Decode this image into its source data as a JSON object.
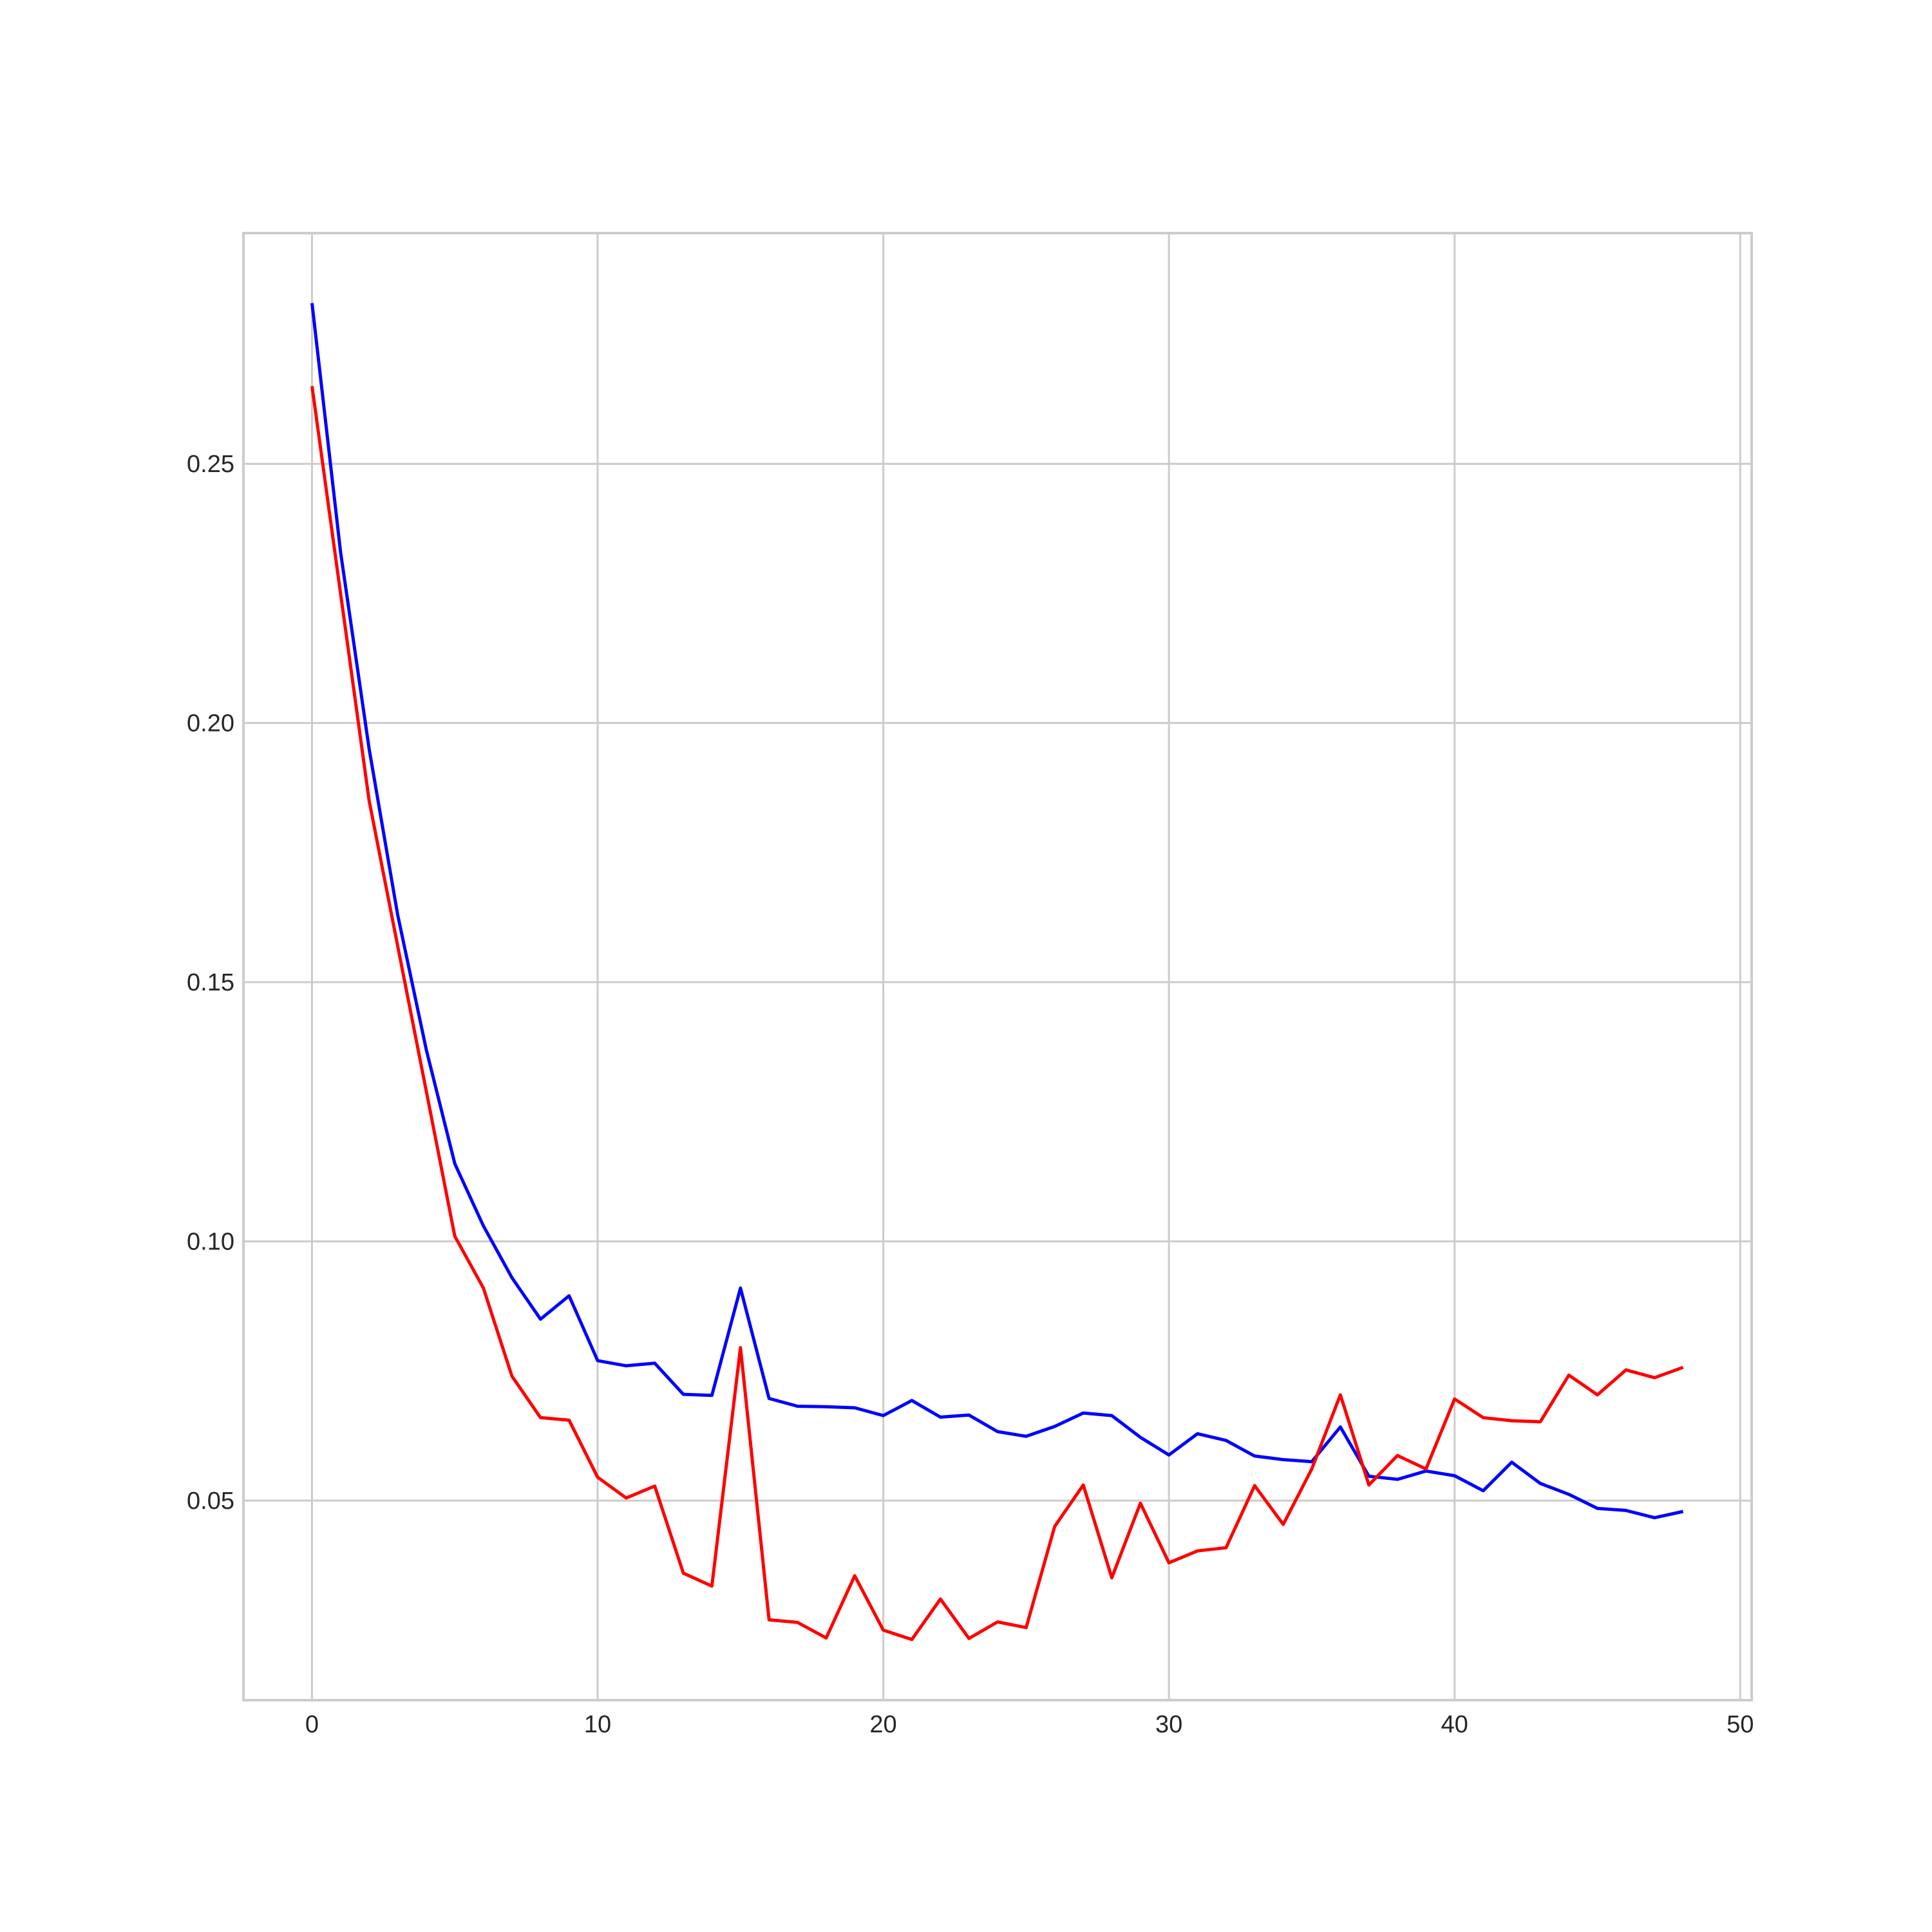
{
  "chart_data": {
    "type": "line",
    "title": "",
    "xlabel": "",
    "ylabel": "",
    "xlim": [
      -2.4,
      50.4
    ],
    "ylim": [
      0.0115,
      0.2945
    ],
    "xticks": [
      0,
      10,
      20,
      30,
      40,
      50
    ],
    "xtick_labels": [
      "0",
      "10",
      "20",
      "30",
      "40",
      "50"
    ],
    "yticks": [
      0.05,
      0.1,
      0.15,
      0.2,
      0.25
    ],
    "ytick_labels": [
      "0.05",
      "0.10",
      "0.15",
      "0.20",
      "0.25"
    ],
    "grid": true,
    "legend": "none",
    "x": [
      0,
      1,
      2,
      3,
      4,
      5,
      6,
      7,
      8,
      9,
      10,
      11,
      12,
      13,
      14,
      15,
      16,
      17,
      18,
      19,
      20,
      21,
      22,
      23,
      24,
      25,
      26,
      27,
      28,
      29,
      30,
      31,
      32,
      33,
      34,
      35,
      36,
      37,
      38,
      39,
      40,
      41,
      42,
      43,
      44,
      45,
      46,
      47,
      48
    ],
    "series": [
      {
        "color": "#0000ff",
        "values": [
          0.281,
          0.233,
          0.195,
          0.163,
          0.137,
          0.115,
          0.103,
          0.093,
          0.085,
          0.0895,
          0.077,
          0.076,
          0.0765,
          0.0705,
          0.0703,
          0.091,
          0.0697,
          0.0682,
          0.0681,
          0.0679,
          0.0664,
          0.0693,
          0.0661,
          0.0665,
          0.0633,
          0.0624,
          0.0643,
          0.0669,
          0.0664,
          0.0622,
          0.0588,
          0.0629,
          0.0616,
          0.0586,
          0.0579,
          0.0575,
          0.0642,
          0.0547,
          0.0541,
          0.0557,
          0.0548,
          0.0519,
          0.0574,
          0.0533,
          0.0512,
          0.0485,
          0.0481,
          0.0467,
          0.0479
        ]
      },
      {
        "color": "#ff0000",
        "values": [
          0.265,
          0.225,
          0.185,
          0.157,
          0.129,
          0.101,
          0.091,
          0.074,
          0.066,
          0.0655,
          0.0545,
          0.0505,
          0.0528,
          0.036,
          0.0335,
          0.0795,
          0.027,
          0.0265,
          0.0235,
          0.0355,
          0.025,
          0.0232,
          0.031,
          0.0234,
          0.0266,
          0.0255,
          0.045,
          0.053,
          0.0351,
          0.0495,
          0.038,
          0.0403,
          0.0409,
          0.0529,
          0.0454,
          0.0561,
          0.0704,
          0.053,
          0.0587,
          0.0561,
          0.0696,
          0.066,
          0.0654,
          0.0652,
          0.0742,
          0.0704,
          0.0752,
          0.0737,
          0.0757
        ]
      }
    ]
  }
}
